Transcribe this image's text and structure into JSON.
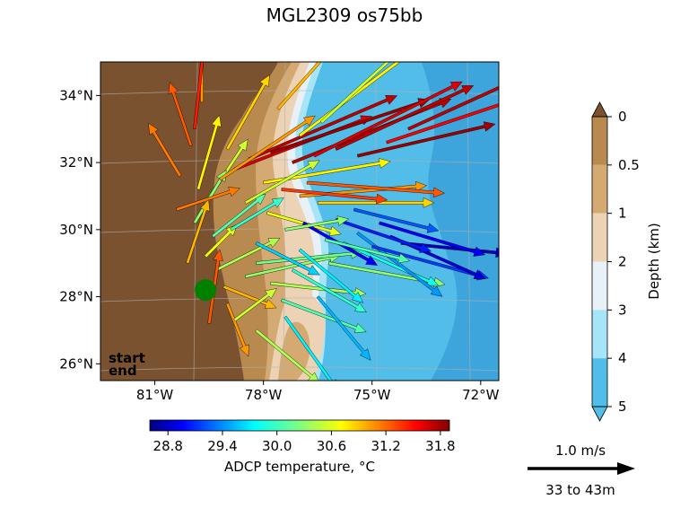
{
  "chart_data": {
    "type": "quiver",
    "title": "MGL2309 os75bb",
    "map": {
      "lon_range": [
        -82.5,
        -71.5
      ],
      "lat_range": [
        25.5,
        35.0
      ],
      "lon_ticks": [
        -81,
        -78,
        -75,
        -72
      ],
      "lon_tick_labels": [
        "81°W",
        "78°W",
        "75°W",
        "72°W"
      ],
      "lat_ticks": [
        26,
        28,
        30,
        32,
        34
      ],
      "lat_tick_labels": [
        "26°N",
        "28°N",
        "30°N",
        "32°N",
        "34°N"
      ],
      "grid": true,
      "start_point": {
        "lon": -79.6,
        "lat": 28.2
      },
      "legend": {
        "start_label": "start",
        "end_label": "end",
        "start_color": "#008000",
        "end_color": "#ff0000",
        "position": "bottom-left"
      }
    },
    "depth_colorbar": {
      "label": "Depth (km)",
      "ticks": [
        0,
        0.5,
        1,
        2,
        3,
        4,
        5
      ],
      "tick_labels": [
        "0",
        "0.5",
        "1",
        "2",
        "3",
        "4",
        "5"
      ],
      "colors": [
        "#b88a50",
        "#d4aa72",
        "#ecd3b5",
        "#e8f1f8",
        "#a6e4f7",
        "#52bde9"
      ],
      "over_color": "#7a5230",
      "under_color": "#52bde9"
    },
    "temperature_colorbar": {
      "label": "ADCP temperature, °C",
      "range": [
        28.6,
        31.9
      ],
      "ticks": [
        28.8,
        29.4,
        30.0,
        30.6,
        31.2,
        31.8
      ],
      "tick_labels": [
        "28.8",
        "29.4",
        "30.0",
        "30.6",
        "31.2",
        "31.8"
      ],
      "colormap": "jet"
    },
    "reference_arrow": {
      "speed_label": "1.0 m/s",
      "depth_label": "33 to 43m"
    },
    "vectors": [
      {
        "lon": -79.7,
        "lat": 33.8,
        "u": 0.0,
        "v": 0.8,
        "t": 31.0
      },
      {
        "lon": -79.9,
        "lat": 33.0,
        "u": 0.1,
        "v": 0.9,
        "t": 31.4
      },
      {
        "lon": -80.0,
        "lat": 32.5,
        "u": -0.2,
        "v": 0.6,
        "t": 31.2
      },
      {
        "lon": -80.3,
        "lat": 31.6,
        "u": -0.3,
        "v": 0.5,
        "t": 31.1
      },
      {
        "lon": -79.8,
        "lat": 31.2,
        "u": 0.2,
        "v": 0.7,
        "t": 30.7
      },
      {
        "lon": -79.6,
        "lat": 30.8,
        "u": 0.4,
        "v": 0.6,
        "t": 30.5
      },
      {
        "lon": -79.9,
        "lat": 30.2,
        "u": 0.3,
        "v": 0.5,
        "t": 30.3
      },
      {
        "lon": -79.4,
        "lat": 29.8,
        "u": 0.5,
        "v": 0.4,
        "t": 30.1
      },
      {
        "lon": -79.6,
        "lat": 29.2,
        "u": 0.3,
        "v": 0.3,
        "t": 30.6
      },
      {
        "lon": -79.3,
        "lat": 28.8,
        "u": 0.6,
        "v": 0.3,
        "t": 30.4
      },
      {
        "lon": -79.1,
        "lat": 28.3,
        "u": 0.5,
        "v": -0.2,
        "t": 30.9
      },
      {
        "lon": -79.0,
        "lat": 27.8,
        "u": 0.2,
        "v": -0.5,
        "t": 31.0
      },
      {
        "lon": -78.8,
        "lat": 27.3,
        "u": 0.4,
        "v": 0.3,
        "t": 30.5
      },
      {
        "lon": -78.5,
        "lat": 28.6,
        "u": 0.9,
        "v": 0.2,
        "t": 30.3
      },
      {
        "lon": -78.2,
        "lat": 29.0,
        "u": 1.0,
        "v": 0.1,
        "t": 30.2
      },
      {
        "lon": -77.8,
        "lat": 28.4,
        "u": 0.9,
        "v": -0.1,
        "t": 30.4
      },
      {
        "lon": -77.5,
        "lat": 27.9,
        "u": 0.8,
        "v": -0.3,
        "t": 30.1
      },
      {
        "lon": -77.2,
        "lat": 28.8,
        "u": 0.7,
        "v": -0.4,
        "t": 30.0
      },
      {
        "lon": -77.0,
        "lat": 29.4,
        "u": 0.6,
        "v": -0.5,
        "t": 29.8
      },
      {
        "lon": -76.5,
        "lat": 28.0,
        "u": 0.5,
        "v": -0.6,
        "t": 29.6
      },
      {
        "lon": -76.2,
        "lat": 29.0,
        "u": 1.1,
        "v": -0.2,
        "t": 30.3
      },
      {
        "lon": -75.8,
        "lat": 29.6,
        "u": 0.9,
        "v": -0.4,
        "t": 29.9
      },
      {
        "lon": -75.4,
        "lat": 29.9,
        "u": 0.8,
        "v": -0.6,
        "t": 29.5
      },
      {
        "lon": -75.0,
        "lat": 29.5,
        "u": 1.1,
        "v": -0.3,
        "t": 29.2
      },
      {
        "lon": -74.5,
        "lat": 29.8,
        "u": 0.9,
        "v": -0.4,
        "t": 28.9
      },
      {
        "lon": -74.2,
        "lat": 29.6,
        "u": 1.0,
        "v": -0.1,
        "t": 28.8
      },
      {
        "lon": -74.8,
        "lat": 30.2,
        "u": 1.0,
        "v": -0.3,
        "t": 29.0
      },
      {
        "lon": -75.5,
        "lat": 30.6,
        "u": 0.8,
        "v": -0.2,
        "t": 29.3
      },
      {
        "lon": -76.0,
        "lat": 30.3,
        "u": 0.9,
        "v": -0.3,
        "t": 29.1
      },
      {
        "lon": -76.5,
        "lat": 30.8,
        "u": 1.1,
        "v": 0.0,
        "t": 30.8
      },
      {
        "lon": -77.0,
        "lat": 31.0,
        "u": 1.2,
        "v": 0.1,
        "t": 31.0
      },
      {
        "lon": -77.5,
        "lat": 31.2,
        "u": 1.0,
        "v": -0.1,
        "t": 31.3
      },
      {
        "lon": -78.0,
        "lat": 31.4,
        "u": 1.2,
        "v": 0.2,
        "t": 30.7
      },
      {
        "lon": -78.5,
        "lat": 30.8,
        "u": 0.7,
        "v": 0.4,
        "t": 30.5
      },
      {
        "lon": -78.8,
        "lat": 31.8,
        "u": 1.3,
        "v": 0.5,
        "t": 31.6
      },
      {
        "lon": -78.4,
        "lat": 32.1,
        "u": 1.4,
        "v": 0.6,
        "t": 31.7
      },
      {
        "lon": -77.8,
        "lat": 32.3,
        "u": 1.5,
        "v": 0.5,
        "t": 31.8
      },
      {
        "lon": -77.2,
        "lat": 32.0,
        "u": 1.5,
        "v": 0.6,
        "t": 31.7
      },
      {
        "lon": -76.6,
        "lat": 32.2,
        "u": 1.4,
        "v": 0.7,
        "t": 31.6
      },
      {
        "lon": -76.0,
        "lat": 32.4,
        "u": 1.3,
        "v": 0.6,
        "t": 31.7
      },
      {
        "lon": -77.0,
        "lat": 32.8,
        "u": 1.2,
        "v": 0.9,
        "t": 30.7
      },
      {
        "lon": -76.4,
        "lat": 33.2,
        "u": 1.1,
        "v": 1.0,
        "t": 30.5
      },
      {
        "lon": -77.6,
        "lat": 33.6,
        "u": 0.8,
        "v": 0.9,
        "t": 30.9
      },
      {
        "lon": -75.4,
        "lat": 32.2,
        "u": 1.3,
        "v": 0.3,
        "t": 31.8
      },
      {
        "lon": -74.6,
        "lat": 32.6,
        "u": 1.2,
        "v": 0.4,
        "t": 31.5
      },
      {
        "lon": -74.0,
        "lat": 33.0,
        "u": 1.1,
        "v": 0.5,
        "t": 31.7
      },
      {
        "lon": -76.8,
        "lat": 31.4,
        "u": 1.3,
        "v": -0.1,
        "t": 31.2
      },
      {
        "lon": -77.9,
        "lat": 30.5,
        "u": 0.7,
        "v": -0.2,
        "t": 30.6
      },
      {
        "lon": -78.9,
        "lat": 30.0,
        "u": 0.5,
        "v": 0.3,
        "t": 30.0
      },
      {
        "lon": -78.2,
        "lat": 29.6,
        "u": 0.6,
        "v": -0.3,
        "t": 29.7
      },
      {
        "lon": -76.9,
        "lat": 30.2,
        "u": 0.7,
        "v": -0.4,
        "t": 29.0
      },
      {
        "lon": -76.3,
        "lat": 29.7,
        "u": 0.8,
        "v": -0.2,
        "t": 30.1
      },
      {
        "lon": -77.4,
        "lat": 30.0,
        "u": 0.6,
        "v": 0.1,
        "t": 30.3
      },
      {
        "lon": -79.2,
        "lat": 31.5,
        "u": 0.9,
        "v": 0.6,
        "t": 31.0
      },
      {
        "lon": -79.0,
        "lat": 32.4,
        "u": 0.4,
        "v": 0.7,
        "t": 30.8
      },
      {
        "lon": -80.4,
        "lat": 30.6,
        "u": 0.6,
        "v": 0.2,
        "t": 31.1
      },
      {
        "lon": -80.1,
        "lat": 29.0,
        "u": 0.2,
        "v": 0.6,
        "t": 30.9
      },
      {
        "lon": -79.5,
        "lat": 27.2,
        "u": 0.1,
        "v": 0.7,
        "t": 31.2
      },
      {
        "lon": -78.2,
        "lat": 27.0,
        "u": 0.6,
        "v": -0.5,
        "t": 30.4
      },
      {
        "lon": -77.4,
        "lat": 27.4,
        "u": 0.5,
        "v": -0.7,
        "t": 29.8
      }
    ]
  }
}
